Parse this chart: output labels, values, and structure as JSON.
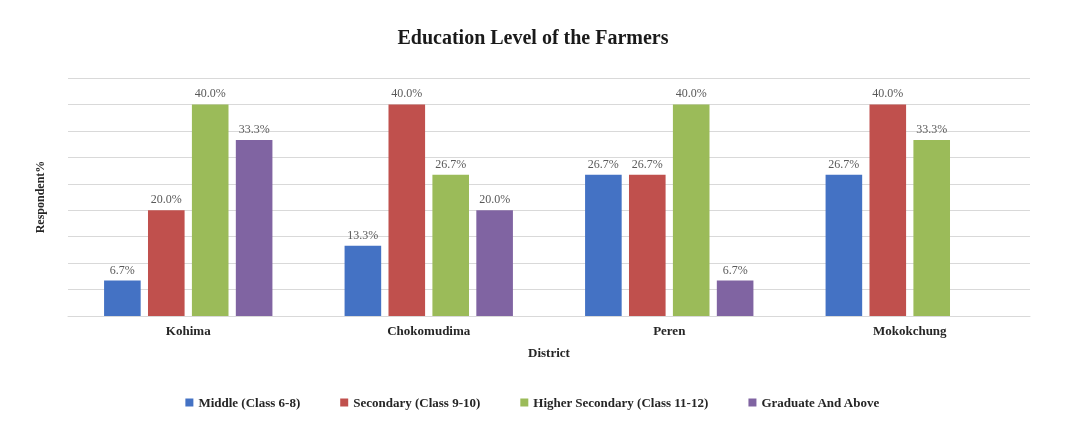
{
  "chart_data": {
    "type": "bar",
    "title": "Education Level of the Farmers",
    "xlabel": "District",
    "ylabel": "Respondent%",
    "categories": [
      "Kohima",
      "Chokomudima",
      "Peren",
      "Mokokchung"
    ],
    "series": [
      {
        "name": "Middle (Class 6-8)",
        "color": "#4472c4",
        "values": [
          6.7,
          13.3,
          26.7,
          26.7
        ],
        "value_labels": [
          "6.7%",
          "13.3%",
          "26.7%",
          "26.7%"
        ]
      },
      {
        "name": "Secondary (Class 9-10)",
        "color": "#c0504d",
        "values": [
          20.0,
          40.0,
          26.7,
          40.0
        ],
        "value_labels": [
          "20.0%",
          "40.0%",
          "26.7%",
          "40.0%"
        ]
      },
      {
        "name": "Higher Secondary (Class 11-12)",
        "color": "#9bbb59",
        "values": [
          40.0,
          26.7,
          40.0,
          33.3
        ],
        "value_labels": [
          "40.0%",
          "26.7%",
          "40.0%",
          "33.3%"
        ]
      },
      {
        "name": "Graduate And Above",
        "color": "#8064a2",
        "values": [
          33.3,
          20.0,
          6.7,
          null
        ],
        "value_labels": [
          "33.3%",
          "20.0%",
          "6.7%",
          null
        ]
      }
    ],
    "ylim": [
      0,
      45
    ],
    "yticks": [
      {
        "value": 0,
        "label": null
      },
      {
        "value": 5,
        "label": null
      },
      {
        "value": 10,
        "label": null
      },
      {
        "value": 15,
        "label": null
      },
      {
        "value": 20,
        "label": null
      },
      {
        "value": 25,
        "label": null
      },
      {
        "value": 30,
        "label": null
      },
      {
        "value": 35,
        "label": null
      },
      {
        "value": 40,
        "label": null
      },
      {
        "value": 45,
        "label": null
      }
    ],
    "tick_labels": "x",
    "grid": "y",
    "legend": "bottom"
  }
}
